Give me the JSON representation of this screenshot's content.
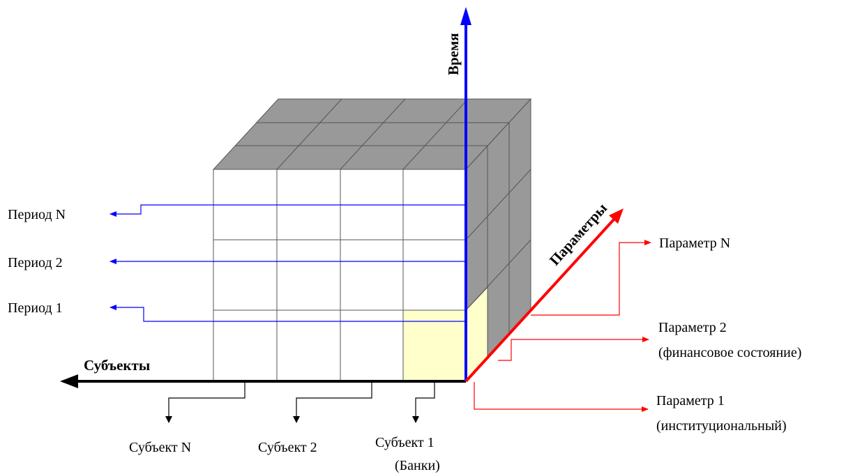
{
  "axes": {
    "time": "Время",
    "params": "Параметры",
    "subjects": "Субъекты"
  },
  "periods": {
    "n": "Период N",
    "two": "Период 2",
    "one": "Период 1"
  },
  "parameters": {
    "n": "Параметр N",
    "two_line1": "Параметр 2",
    "two_line2": "(финансовое состояние)",
    "one_line1": "Параметр 1",
    "one_line2": "(институциональный)"
  },
  "subjects": {
    "n": "Субъект N",
    "two": "Субъект 2",
    "one_line1": "Субъект 1",
    "one_line2": "(Банки)"
  },
  "colors": {
    "time_axis": "#0000ff",
    "params_axis": "#ff0000",
    "subjects_axis": "#000000",
    "cube_top": "#999999",
    "cube_side": "#999999",
    "highlight_cell": "#ffffcc"
  }
}
